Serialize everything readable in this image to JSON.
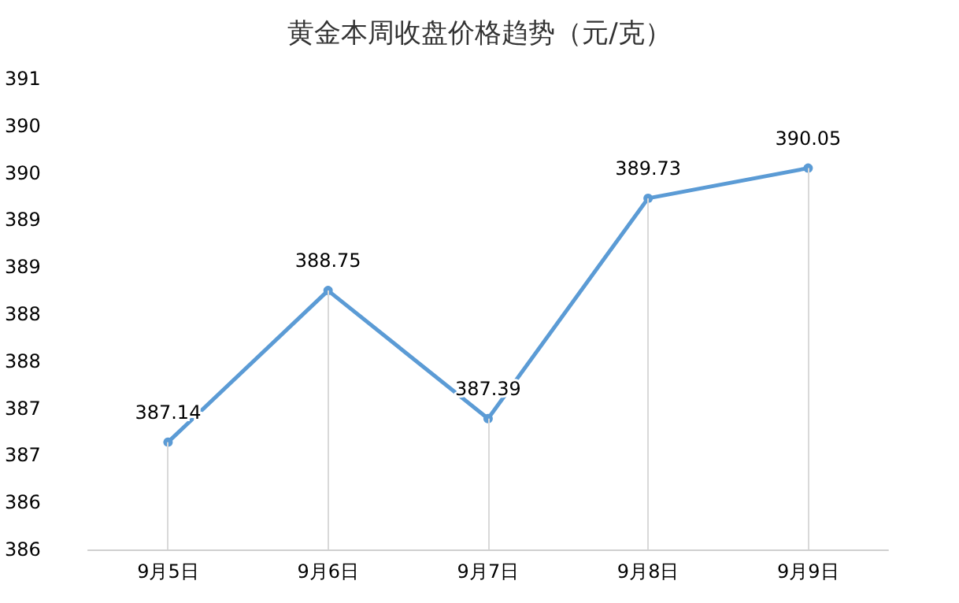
{
  "chart_data": {
    "type": "line",
    "title": "黄金本周收盘价格趋势（元/克）",
    "categories": [
      "9月5日",
      "9月6日",
      "9月7日",
      "9月8日",
      "9月9日"
    ],
    "series": [
      {
        "color": "#5b9bd5",
        "values": [
          387.14,
          388.75,
          387.39,
          389.73,
          390.05
        ]
      }
    ],
    "ylim": [
      386,
      391
    ],
    "yticks": [
      386,
      {
        "value": 386.5,
        "label": "386"
      },
      387,
      {
        "value": 387.5,
        "label": "387"
      },
      388,
      {
        "value": 388.5,
        "label": "388"
      },
      389,
      {
        "value": 389.5,
        "label": "389"
      },
      390,
      {
        "value": 390.5,
        "label": "390"
      },
      391
    ],
    "data_labels": true,
    "grid": "x",
    "marker": "circle",
    "line_style": "solid"
  }
}
